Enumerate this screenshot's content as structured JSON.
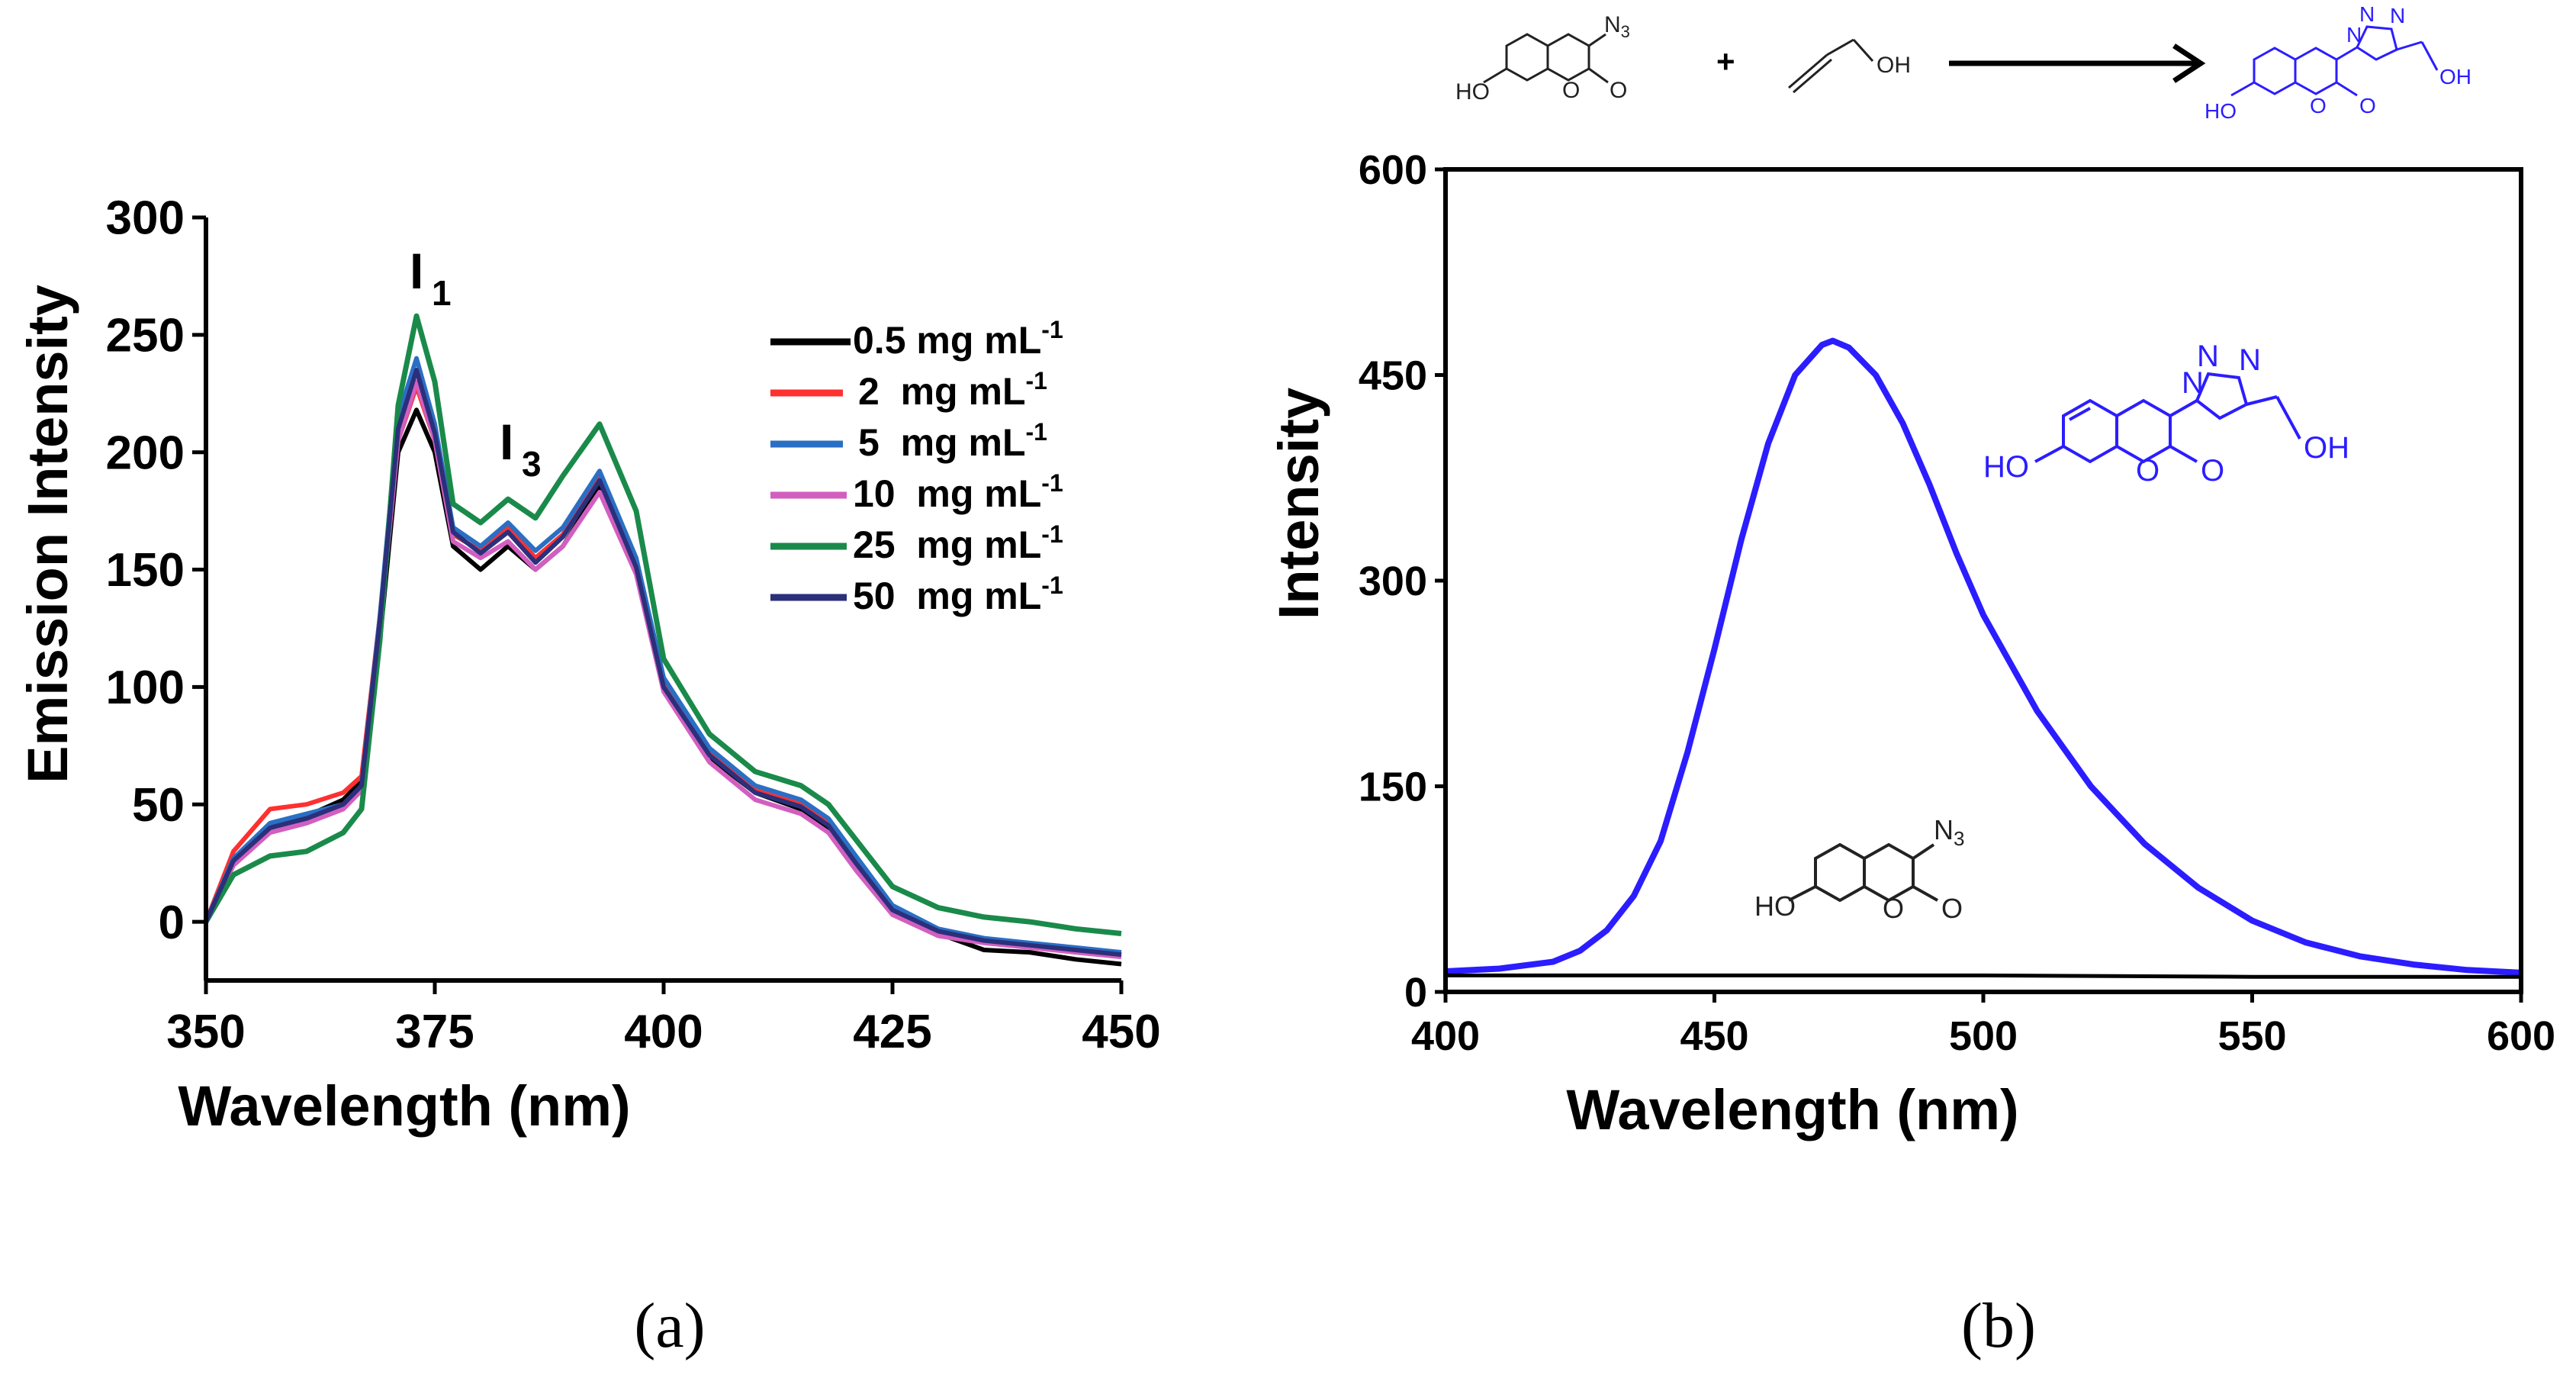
{
  "colors": {
    "axis": "#000000",
    "blue_product": "#2b1dff",
    "black": "#000000",
    "legend": [
      "#000000",
      "#ff3030",
      "#2a6fc4",
      "#d25fc0",
      "#1a8a4a",
      "#2c2f7a"
    ]
  },
  "chart_data": [
    {
      "panel_label": "(a)",
      "type": "line",
      "xlabel": "Wavelength (nm)",
      "ylabel": "Emission Intensity",
      "xlim": [
        350,
        450
      ],
      "ylim": [
        -25,
        300
      ],
      "xticks": [
        350,
        375,
        400,
        425,
        450
      ],
      "yticks": [
        0,
        50,
        100,
        150,
        200,
        250,
        300
      ],
      "grid": false,
      "legend_position": "upper-right",
      "annotations": [
        {
          "base": "I",
          "sub": "1",
          "at": [
            373,
            262
          ]
        },
        {
          "base": "I",
          "sub": "3",
          "at": [
            383,
            188
          ]
        }
      ],
      "series": [
        {
          "name": "0.5 mg mL",
          "sup": "-1",
          "color": "#000000",
          "x": [
            350,
            353,
            357,
            361,
            365,
            367,
            369,
            371,
            373,
            375,
            377,
            380,
            383,
            386,
            389,
            393,
            397,
            400,
            405,
            410,
            415,
            418,
            421,
            425,
            430,
            435,
            440,
            445,
            450
          ],
          "y": [
            0,
            25,
            40,
            45,
            52,
            60,
            120,
            200,
            218,
            200,
            160,
            150,
            160,
            150,
            160,
            185,
            150,
            100,
            70,
            55,
            48,
            40,
            25,
            5,
            -5,
            -12,
            -13,
            -16,
            -18
          ]
        },
        {
          "name": "2  mg mL",
          "sup": "-1",
          "color": "#ff3030",
          "x": [
            350,
            353,
            357,
            361,
            365,
            367,
            369,
            371,
            373,
            375,
            377,
            380,
            383,
            386,
            389,
            393,
            397,
            400,
            405,
            410,
            415,
            418,
            421,
            425,
            430,
            435,
            440,
            445,
            450
          ],
          "y": [
            0,
            30,
            48,
            50,
            55,
            62,
            130,
            205,
            228,
            205,
            165,
            158,
            168,
            155,
            165,
            190,
            152,
            102,
            72,
            56,
            50,
            42,
            27,
            6,
            -4,
            -8,
            -10,
            -12,
            -14
          ]
        },
        {
          "name": "5  mg mL",
          "sup": "-1",
          "color": "#2a6fc4",
          "x": [
            350,
            353,
            357,
            361,
            365,
            367,
            369,
            371,
            373,
            375,
            377,
            380,
            383,
            386,
            389,
            393,
            397,
            400,
            405,
            410,
            415,
            418,
            421,
            425,
            430,
            435,
            440,
            445,
            450
          ],
          "y": [
            0,
            27,
            42,
            46,
            50,
            58,
            130,
            215,
            240,
            212,
            168,
            160,
            170,
            158,
            168,
            192,
            155,
            104,
            74,
            58,
            52,
            44,
            28,
            7,
            -3,
            -7,
            -9,
            -11,
            -13
          ]
        },
        {
          "name": "10  mg mL",
          "sup": "-1",
          "color": "#d25fc0",
          "x": [
            350,
            353,
            357,
            361,
            365,
            367,
            369,
            371,
            373,
            375,
            377,
            380,
            383,
            386,
            389,
            393,
            397,
            400,
            405,
            410,
            415,
            418,
            421,
            425,
            430,
            435,
            440,
            445,
            450
          ],
          "y": [
            0,
            24,
            38,
            42,
            48,
            56,
            125,
            205,
            230,
            205,
            162,
            155,
            162,
            150,
            160,
            183,
            148,
            98,
            68,
            52,
            46,
            38,
            22,
            3,
            -6,
            -9,
            -11,
            -13,
            -15
          ]
        },
        {
          "name": "25  mg mL",
          "sup": "-1",
          "color": "#1a8a4a",
          "x": [
            350,
            353,
            357,
            361,
            365,
            367,
            369,
            371,
            373,
            375,
            377,
            380,
            383,
            386,
            389,
            393,
            397,
            400,
            405,
            410,
            415,
            418,
            421,
            425,
            430,
            435,
            440,
            445,
            450
          ],
          "y": [
            0,
            20,
            28,
            30,
            38,
            48,
            120,
            220,
            258,
            230,
            178,
            170,
            180,
            172,
            190,
            212,
            175,
            112,
            80,
            64,
            58,
            50,
            35,
            15,
            6,
            2,
            0,
            -3,
            -5
          ]
        },
        {
          "name": "50  mg mL",
          "sup": "-1",
          "color": "#2c2f7a",
          "x": [
            350,
            353,
            357,
            361,
            365,
            367,
            369,
            371,
            373,
            375,
            377,
            380,
            383,
            386,
            389,
            393,
            397,
            400,
            405,
            410,
            415,
            418,
            421,
            425,
            430,
            435,
            440,
            445,
            450
          ],
          "y": [
            0,
            26,
            40,
            44,
            50,
            58,
            128,
            210,
            235,
            208,
            166,
            157,
            166,
            153,
            164,
            188,
            151,
            100,
            71,
            55,
            49,
            41,
            25,
            5,
            -4,
            -8,
            -10,
            -12,
            -14
          ]
        }
      ]
    },
    {
      "panel_label": "(b)",
      "type": "line",
      "xlabel": "Wavelength (nm)",
      "ylabel": "Intensity",
      "xlim": [
        400,
        600
      ],
      "ylim": [
        0,
        600
      ],
      "xticks": [
        400,
        450,
        500,
        550,
        600
      ],
      "yticks": [
        0,
        150,
        300,
        450,
        600
      ],
      "grid": false,
      "series": [
        {
          "name": "triazole product",
          "color": "#2b1dff",
          "x": [
            400,
            410,
            420,
            425,
            430,
            435,
            440,
            445,
            450,
            455,
            460,
            465,
            470,
            472,
            475,
            480,
            485,
            490,
            495,
            500,
            510,
            520,
            530,
            540,
            550,
            560,
            570,
            580,
            590,
            600
          ],
          "y": [
            15,
            17,
            22,
            30,
            45,
            70,
            110,
            175,
            250,
            330,
            400,
            450,
            472,
            475,
            470,
            450,
            415,
            370,
            320,
            275,
            205,
            150,
            108,
            76,
            52,
            36,
            26,
            20,
            16,
            14
          ]
        },
        {
          "name": "azidocoumarin",
          "color": "#000000",
          "x": [
            400,
            450,
            500,
            550,
            600
          ],
          "y": [
            12,
            12,
            12,
            11,
            11
          ]
        }
      ]
    }
  ],
  "scheme": {
    "n3": "N",
    "n3_sub": "3",
    "ho": "HO",
    "o": "O",
    "plus": "+",
    "oh": "OH",
    "n": "N"
  }
}
